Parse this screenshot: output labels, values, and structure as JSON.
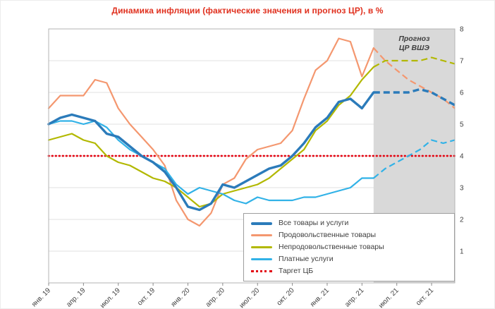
{
  "title": "Динамика инфляции (фактические значения и прогноз ЦР), в %",
  "chart_data": {
    "type": "line",
    "title": "Динамика инфляции (фактические значения и прогноз ЦР), в %",
    "n_points": 36,
    "ylim": [
      0,
      8
    ],
    "y_ticks": [
      1,
      2,
      3,
      4,
      5,
      6,
      7,
      8
    ],
    "grid": true,
    "legend_position": "bottom-right-inside",
    "x_ticks": [
      {
        "index": 0,
        "label": "янв. 19"
      },
      {
        "index": 3,
        "label": "апр. 19"
      },
      {
        "index": 6,
        "label": "июл. 19"
      },
      {
        "index": 9,
        "label": "окт. 19"
      },
      {
        "index": 12,
        "label": "янв. 20"
      },
      {
        "index": 15,
        "label": "апр. 20"
      },
      {
        "index": 18,
        "label": "июл. 20"
      },
      {
        "index": 21,
        "label": "окт. 20"
      },
      {
        "index": 24,
        "label": "янв. 21"
      },
      {
        "index": 27,
        "label": "апр. 21"
      },
      {
        "index": 30,
        "label": "июл. 21"
      },
      {
        "index": 33,
        "label": "окт. 21"
      }
    ],
    "forecast_start_index": 28,
    "forecast_region": {
      "label_lines": [
        "Прогноз",
        "ЦР ВШЭ"
      ],
      "fill": "#d9d9d9"
    },
    "target": {
      "label": "Таргет ЦБ",
      "value": 4,
      "color": "#e30613"
    },
    "series": [
      {
        "name": "Все товары и услуги",
        "color": "#2b7bba",
        "width": 3.4,
        "values": [
          5.0,
          5.2,
          5.3,
          5.2,
          5.1,
          4.7,
          4.6,
          4.3,
          4.0,
          3.8,
          3.5,
          3.0,
          2.4,
          2.3,
          2.5,
          3.1,
          3.0,
          3.2,
          3.4,
          3.6,
          3.7,
          4.0,
          4.4,
          4.9,
          5.2,
          5.7,
          5.8,
          5.5,
          6.0,
          6.0,
          6.0,
          6.0,
          6.1,
          6.0,
          5.8,
          5.6
        ]
      },
      {
        "name": "Продовольственные товары",
        "color": "#f4976f",
        "width": 2.2,
        "values": [
          5.5,
          5.9,
          5.9,
          5.9,
          6.4,
          6.3,
          5.5,
          5.0,
          4.6,
          4.2,
          3.7,
          2.6,
          2.0,
          1.8,
          2.2,
          3.1,
          3.3,
          3.9,
          4.2,
          4.3,
          4.4,
          4.8,
          5.8,
          6.7,
          7.0,
          7.7,
          7.6,
          6.5,
          7.4,
          7.0,
          6.7,
          6.4,
          6.2,
          6.0,
          5.8,
          5.5
        ]
      },
      {
        "name": "Непродовольственные товары",
        "color": "#b2b800",
        "width": 2.2,
        "values": [
          4.5,
          4.6,
          4.7,
          4.5,
          4.4,
          4.0,
          3.8,
          3.7,
          3.5,
          3.3,
          3.2,
          3.0,
          2.7,
          2.4,
          2.5,
          2.8,
          2.9,
          3.0,
          3.1,
          3.3,
          3.6,
          3.9,
          4.2,
          4.8,
          5.1,
          5.6,
          5.9,
          6.4,
          6.8,
          7.0,
          7.0,
          7.0,
          7.0,
          7.1,
          7.0,
          6.9
        ]
      },
      {
        "name": "Платные услуги",
        "color": "#31b2e7",
        "width": 2.2,
        "values": [
          5.0,
          5.1,
          5.1,
          5.0,
          5.1,
          4.9,
          4.5,
          4.2,
          4.0,
          3.8,
          3.6,
          3.1,
          2.8,
          3.0,
          2.9,
          2.8,
          2.6,
          2.5,
          2.7,
          2.6,
          2.6,
          2.6,
          2.7,
          2.7,
          2.8,
          2.9,
          3.0,
          3.3,
          3.3,
          3.6,
          3.8,
          4.0,
          4.2,
          4.5,
          4.4,
          4.5
        ]
      }
    ]
  }
}
